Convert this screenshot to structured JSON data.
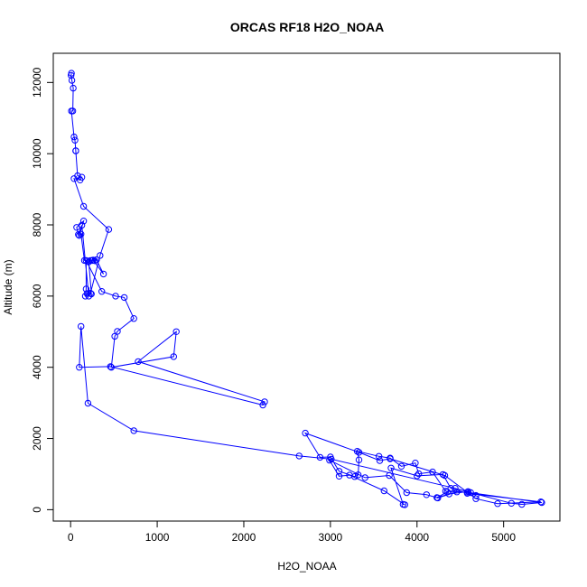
{
  "chart_data": {
    "type": "line",
    "title": "ORCAS RF18 H2O_NOAA",
    "xlabel": "H2O_NOAA",
    "ylabel": "Altitude (m)",
    "xlim": [
      -200,
      5650
    ],
    "ylim": [
      -320,
      12820
    ],
    "xticks": [
      0,
      1000,
      2000,
      3000,
      4000,
      5000
    ],
    "xtick_labels": [
      "0",
      "1000",
      "2000",
      "3000",
      "4000",
      "5000"
    ],
    "yticks": [
      0,
      2000,
      4000,
      6000,
      8000,
      10000,
      12000
    ],
    "ytick_labels": [
      "0",
      "2000",
      "4000",
      "6000",
      "8000",
      "10000",
      "12000"
    ],
    "grid": false,
    "color": "#0000ff",
    "marker": "open-circle",
    "series": [
      {
        "x": [
          10,
          5,
          15,
          30,
          25,
          10,
          40,
          50,
          60,
          60,
          80,
          130,
          110,
          40,
          150,
          440,
          340,
          230,
          190,
          210,
          130,
          90,
          70,
          150,
          100,
          120,
          160,
          300,
          380,
          260,
          250,
          280,
          250,
          230,
          210,
          240,
          170,
          180,
          180,
          360,
          520,
          620,
          730,
          540,
          510,
          470,
          1190,
          1220,
          780,
          2240,
          2220,
          460,
          100,
          120,
          200,
          730,
          2640,
          3010,
          4440,
          4620,
          5090,
          5210,
          5440,
          4580,
          4330,
          4180,
          4020,
          3980,
          3820,
          3690,
          3560,
          3310,
          3330,
          3320,
          3280,
          3100,
          3000,
          2880,
          2710,
          3330,
          3570,
          3690,
          4320,
          4680,
          4930,
          5430,
          4580,
          4390,
          4300,
          4000,
          3700,
          3840,
          3860,
          3620,
          3220,
          3100,
          2990,
          3400,
          3680,
          3880,
          4110,
          4240,
          4460,
          4230,
          4350,
          4370,
          4590,
          4680
        ]
      }
    ],
    "y": [
      12260,
      12200,
      12060,
      11840,
      11200,
      11200,
      10470,
      10380,
      10080,
      10080,
      9380,
      9340,
      9260,
      9300,
      8520,
      7870,
      7140,
      6080,
      6070,
      6000,
      7990,
      7730,
      7930,
      8110,
      7700,
      7740,
      7000,
      7020,
      6620,
      7010,
      7000,
      6990,
      7000,
      7000,
      6960,
      6060,
      6000,
      6200,
      7000,
      6130,
      6000,
      5960,
      5370,
      5010,
      4870,
      4000,
      4300,
      5000,
      4160,
      3030,
      2940,
      4020,
      4000,
      5150,
      2990,
      2220,
      1510,
      1420,
      600,
      480,
      180,
      150,
      200,
      490,
      520,
      1060,
      1010,
      1310,
      1220,
      1450,
      1500,
      1640,
      1400,
      980,
      930,
      1080,
      1480,
      1470,
      2150,
      1610,
      1380,
      1430,
      960,
      310,
      170,
      220,
      460,
      600,
      990,
      950,
      1170,
      150,
      140,
      530,
      970,
      940,
      1390,
      900,
      960,
      480,
      420,
      330,
      500,
      340,
      500,
      440,
      510,
      400
    ]
  }
}
